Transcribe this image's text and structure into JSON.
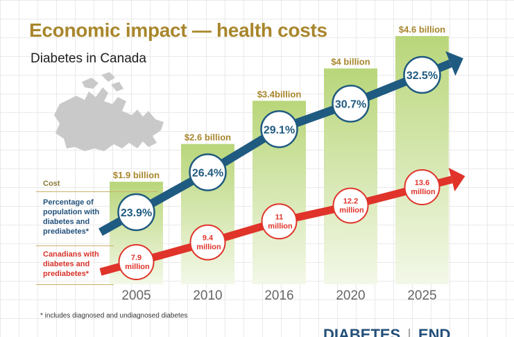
{
  "header": {
    "title": "Economic impact — health costs",
    "subtitle": "Diabetes in Canada"
  },
  "legend": {
    "cost": "Cost",
    "pct": "Percentage of population with diabetes and prediabetes*",
    "cnt": "Canadians with diabetes and prediabetes*"
  },
  "footnote": "* includes diagnosed and undiagnosed diabetes",
  "logo": {
    "left": "DIABETES",
    "right": "END"
  },
  "colors": {
    "bar_top": "#b9d67a",
    "bar_bottom": "#f3f8e8",
    "blue": "#1f5a80",
    "red": "#e0332a",
    "gold": "#a8862c",
    "map": "#c9c9c9"
  },
  "icons": {
    "map": "canada-map-icon"
  },
  "chart_data": {
    "type": "bar",
    "categories": [
      "2005",
      "2010",
      "2016",
      "2020",
      "2025"
    ],
    "series": [
      {
        "values": [
          1.9,
          2.6,
          3.4,
          4,
          4.6
        ],
        "labels": [
          "$1.9 billion",
          "$2.6 billion",
          "$3.4billion",
          "$4 billion",
          "$4.6 billion"
        ]
      },
      {
        "values": [
          23.9,
          26.4,
          29.1,
          30.7,
          32.5
        ],
        "labels": [
          "23.9%",
          "26.4%",
          "29.1%",
          "30.7%",
          "32.5%"
        ]
      },
      {
        "values": [
          7.9,
          9.4,
          11,
          12.2,
          13.6
        ],
        "labels": [
          "7.9 million",
          "9.4 million",
          "11 million",
          "12.2 million",
          "13.6 million"
        ]
      }
    ]
  }
}
